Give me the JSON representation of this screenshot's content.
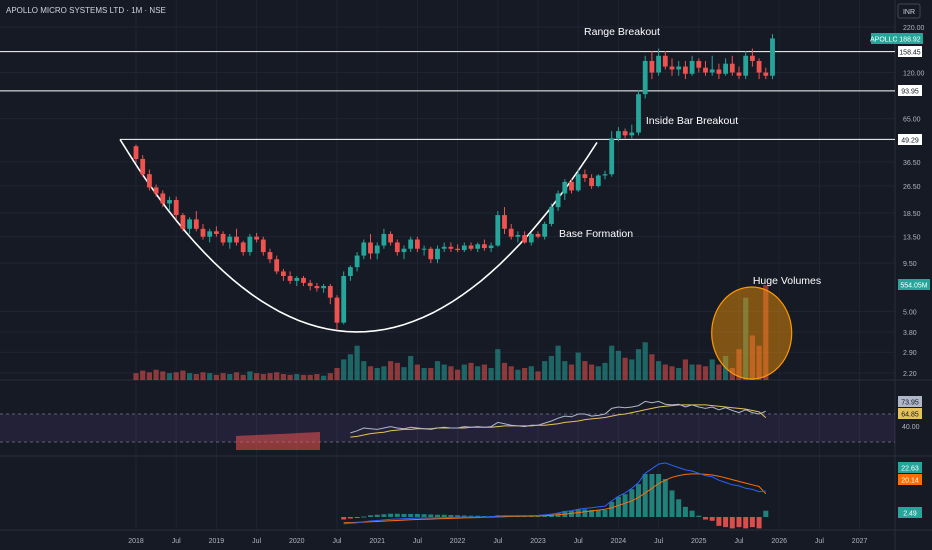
{
  "header": {
    "symbol_title": "APOLLO MICRO SYSTEMS LTD · 1M · NSE",
    "currency": "INR"
  },
  "colors": {
    "background": "#161a25",
    "up": "#26a69a",
    "down": "#ef5350",
    "text": "#d1d4dc",
    "rsi_line": "#b0b7c9",
    "rsi_ma": "#e5c15a",
    "macd_line": "#2962ff",
    "signal_line": "#ff6d00",
    "volume_highlight": "#ff9800"
  },
  "annotations": {
    "range_breakout": "Range Breakout",
    "inside_bar_breakout": "Inside Bar Breakout",
    "base_formation": "Base Formation",
    "huge_volumes": "Huge Volumes"
  },
  "price_badges": {
    "symbol": "APOLLO",
    "last_price": "188.92",
    "level_1": "158.45",
    "level_2": "93.95",
    "level_3": "49.29",
    "volume_last": "554.05M"
  },
  "rsi_badges": {
    "rsi": "73.95",
    "rsi_ma": "64.85",
    "level": "40.00"
  },
  "macd_badges": {
    "macd": "22.63",
    "signal": "20.14",
    "hist": "2.49"
  },
  "chart_data": {
    "type": "candlestick",
    "scale": "log",
    "price_ticks": [
      "220.00",
      "120.00",
      "65.00",
      "36.50",
      "26.50",
      "18.50",
      "13.50",
      "9.50",
      "5.00",
      "3.80",
      "2.90",
      "2.20"
    ],
    "price_tick_values": [
      220,
      120,
      65,
      36.5,
      26.5,
      18.5,
      13.5,
      9.5,
      5.0,
      3.8,
      2.9,
      2.2
    ],
    "x_ticks": [
      "2018",
      "Jul",
      "2019",
      "Jul",
      "2020",
      "Jul",
      "2021",
      "Jul",
      "2022",
      "Jul",
      "2023",
      "Jul",
      "2024",
      "Jul",
      "2025",
      "Jul",
      "2026",
      "Jul",
      "2027"
    ],
    "start": "2018-01",
    "horizontal_levels": [
      158.45,
      93.95,
      49.29
    ],
    "ohlc": [
      [
        45,
        46,
        36,
        38
      ],
      [
        38,
        40,
        30,
        31
      ],
      [
        31,
        33,
        25,
        26
      ],
      [
        26,
        27,
        23,
        24
      ],
      [
        24,
        25,
        20,
        21
      ],
      [
        21,
        23,
        19,
        22
      ],
      [
        22,
        23,
        17,
        18
      ],
      [
        18,
        18.5,
        14.5,
        15
      ],
      [
        15,
        17.5,
        14,
        17
      ],
      [
        17,
        19,
        14.5,
        15
      ],
      [
        15,
        16,
        13,
        13.5
      ],
      [
        13.5,
        15,
        12.5,
        14.5
      ],
      [
        14.5,
        15.5,
        13.5,
        14
      ],
      [
        14,
        14.5,
        12,
        12.5
      ],
      [
        12.5,
        14,
        11.5,
        13.5
      ],
      [
        13.5,
        15,
        12,
        12.5
      ],
      [
        12.5,
        12.8,
        10.5,
        11
      ],
      [
        11,
        14,
        10.5,
        13.5
      ],
      [
        13.5,
        14.2,
        12.5,
        13
      ],
      [
        13,
        13.5,
        10.5,
        11
      ],
      [
        11,
        11.5,
        9.5,
        10
      ],
      [
        10,
        10.5,
        8.2,
        8.5
      ],
      [
        8.5,
        8.8,
        7.5,
        8
      ],
      [
        8,
        8.5,
        7.2,
        7.5
      ],
      [
        7.5,
        8,
        7,
        7.8
      ],
      [
        7.8,
        8,
        7,
        7.3
      ],
      [
        7.3,
        7.6,
        6.6,
        7
      ],
      [
        7,
        7.3,
        6.5,
        6.8
      ],
      [
        6.8,
        7.2,
        6.4,
        7
      ],
      [
        7,
        7.2,
        5.5,
        6
      ],
      [
        6,
        6.2,
        3.9,
        4.3
      ],
      [
        4.3,
        8.5,
        4.2,
        8
      ],
      [
        8,
        9.2,
        7.5,
        9
      ],
      [
        9,
        11,
        8.5,
        10.5
      ],
      [
        10.5,
        13,
        10,
        12.5
      ],
      [
        12.5,
        14,
        10,
        10.8
      ],
      [
        10.8,
        12.5,
        10,
        12
      ],
      [
        12,
        15,
        11.5,
        14
      ],
      [
        14,
        14.5,
        12,
        12.5
      ],
      [
        12.5,
        13,
        10.5,
        11
      ],
      [
        11,
        12,
        10,
        11.5
      ],
      [
        11.5,
        13.5,
        11,
        13
      ],
      [
        13,
        13.5,
        11,
        11.5
      ],
      [
        11.5,
        12,
        10.5,
        11.5
      ],
      [
        11.5,
        11.8,
        9.5,
        10
      ],
      [
        10,
        12,
        9.5,
        11.5
      ],
      [
        11.5,
        12.5,
        11,
        11.8
      ],
      [
        11.8,
        12.5,
        11,
        11.5
      ],
      [
        11.5,
        12.2,
        11,
        11.3
      ],
      [
        11.3,
        12.5,
        11,
        12
      ],
      [
        12,
        12.5,
        11.2,
        11.5
      ],
      [
        11.5,
        12.5,
        11,
        12.2
      ],
      [
        12.2,
        13,
        11.2,
        11.6
      ],
      [
        11.6,
        12.5,
        11,
        12
      ],
      [
        12,
        19,
        11.8,
        18
      ],
      [
        18,
        20,
        14,
        15
      ],
      [
        15,
        16,
        13,
        13.5
      ],
      [
        13.5,
        14.5,
        12.5,
        13.8
      ],
      [
        13.8,
        14.5,
        12.3,
        12.5
      ],
      [
        12.5,
        14.2,
        12,
        14
      ],
      [
        14,
        14.5,
        13.2,
        13.5
      ],
      [
        13.5,
        16.5,
        13,
        16
      ],
      [
        16,
        21,
        15.5,
        20
      ],
      [
        20,
        25,
        19,
        24
      ],
      [
        24,
        29,
        22,
        28
      ],
      [
        28,
        29,
        24,
        25
      ],
      [
        25,
        33,
        24.5,
        31
      ],
      [
        31,
        33,
        28,
        29.5
      ],
      [
        29.5,
        31,
        25.5,
        26.5
      ],
      [
        26.5,
        31,
        26,
        30.5
      ],
      [
        30.5,
        32.5,
        29,
        31
      ],
      [
        31,
        55,
        30,
        50
      ],
      [
        50,
        58,
        48,
        55
      ],
      [
        55,
        57,
        50,
        52
      ],
      [
        52,
        60,
        50,
        54
      ],
      [
        54,
        95,
        52,
        90
      ],
      [
        90,
        150,
        85,
        140
      ],
      [
        140,
        160,
        110,
        120
      ],
      [
        120,
        165,
        115,
        150
      ],
      [
        150,
        160,
        125,
        130
      ],
      [
        130,
        145,
        115,
        125
      ],
      [
        125,
        140,
        115,
        130
      ],
      [
        130,
        140,
        110,
        118
      ],
      [
        118,
        150,
        115,
        140
      ],
      [
        140,
        145,
        120,
        128
      ],
      [
        128,
        140,
        115,
        120
      ],
      [
        120,
        150,
        115,
        125
      ],
      [
        125,
        135,
        110,
        118
      ],
      [
        118,
        145,
        115,
        135
      ],
      [
        135,
        150,
        115,
        120
      ],
      [
        120,
        130,
        110,
        115
      ],
      [
        115,
        160,
        110,
        150
      ],
      [
        150,
        165,
        130,
        140
      ],
      [
        140,
        145,
        110,
        120
      ],
      [
        120,
        128,
        110,
        115
      ],
      [
        115,
        200,
        110,
        188.92
      ]
    ],
    "volume": {
      "name": "Volume",
      "last": "554.05M",
      "values": [
        40,
        55,
        45,
        60,
        50,
        40,
        45,
        55,
        40,
        35,
        45,
        40,
        30,
        40,
        35,
        45,
        30,
        50,
        40,
        35,
        40,
        45,
        35,
        30,
        35,
        30,
        30,
        35,
        25,
        40,
        70,
        120,
        150,
        200,
        110,
        80,
        70,
        80,
        110,
        100,
        75,
        140,
        90,
        70,
        70,
        110,
        90,
        80,
        60,
        90,
        100,
        80,
        90,
        70,
        180,
        100,
        80,
        60,
        70,
        80,
        50,
        110,
        140,
        200,
        110,
        90,
        160,
        110,
        90,
        80,
        100,
        200,
        170,
        130,
        120,
        180,
        220,
        150,
        110,
        90,
        80,
        70,
        120,
        90,
        90,
        80,
        120,
        90,
        140,
        70,
        180,
        480,
        260,
        200,
        554
      ]
    },
    "rsi": {
      "values": [
        null,
        null,
        null,
        null,
        null,
        null,
        null,
        null,
        null,
        null,
        null,
        null,
        null,
        null,
        null,
        null,
        null,
        null,
        null,
        null,
        null,
        null,
        null,
        null,
        null,
        null,
        null,
        null,
        null,
        null,
        null,
        null,
        43,
        46,
        50,
        49,
        48,
        50,
        52,
        50,
        49,
        51,
        50,
        49,
        48,
        50,
        51,
        50,
        50,
        52,
        51,
        52,
        51,
        52,
        58,
        56,
        54,
        53,
        52,
        54,
        54,
        57,
        60,
        64,
        67,
        66,
        70,
        70,
        67,
        68,
        70,
        78,
        80,
        79,
        80,
        82,
        88,
        86,
        88,
        84,
        83,
        84,
        80,
        83,
        80,
        78,
        80,
        76,
        79,
        75,
        72,
        76,
        72,
        70,
        73.95
      ],
      "ma": [
        null,
        null,
        null,
        null,
        null,
        null,
        null,
        null,
        null,
        null,
        null,
        null,
        null,
        null,
        null,
        null,
        null,
        null,
        null,
        null,
        null,
        null,
        null,
        null,
        null,
        null,
        null,
        null,
        null,
        null,
        null,
        null,
        37,
        38,
        40,
        42,
        43,
        44,
        46,
        47,
        48,
        48,
        49,
        49,
        49,
        50,
        50,
        50,
        50,
        50,
        51,
        51,
        51,
        51,
        52,
        53,
        53,
        53,
        53,
        53,
        54,
        54,
        55,
        56,
        58,
        59,
        60,
        62,
        63,
        64,
        65,
        67,
        69,
        70,
        72,
        74,
        76,
        78,
        80,
        81,
        82,
        83,
        83,
        83,
        83,
        83,
        82,
        81,
        80,
        79,
        78,
        77,
        75,
        73,
        64.85
      ],
      "level": 40
    },
    "macd": {
      "macd": [
        null,
        null,
        null,
        null,
        null,
        null,
        null,
        null,
        null,
        null,
        null,
        null,
        null,
        null,
        null,
        null,
        null,
        null,
        null,
        null,
        null,
        null,
        null,
        null,
        null,
        null,
        null,
        null,
        null,
        null,
        null,
        -6,
        -5.5,
        -5,
        -4.2,
        -3.5,
        -3,
        -2.5,
        -2,
        -1.7,
        -1.5,
        -1.2,
        -1,
        -0.9,
        -0.8,
        -0.7,
        -0.5,
        -0.4,
        -0.3,
        -0.2,
        -0.1,
        0,
        0.1,
        0.3,
        0.8,
        1,
        1.1,
        1.2,
        1.2,
        1.3,
        1.4,
        1.8,
        2.5,
        3.5,
        4.8,
        5.5,
        6.8,
        7.5,
        8,
        8.8,
        9.5,
        14,
        18,
        21,
        25,
        30,
        38,
        42,
        46,
        47,
        45,
        43,
        41,
        40,
        38,
        36,
        35,
        32,
        30,
        28,
        27,
        25,
        24,
        22,
        22.63
      ],
      "signal": [
        null,
        null,
        null,
        null,
        null,
        null,
        null,
        null,
        null,
        null,
        null,
        null,
        null,
        null,
        null,
        null,
        null,
        null,
        null,
        null,
        null,
        null,
        null,
        null,
        null,
        null,
        null,
        null,
        null,
        null,
        null,
        -5,
        -4.9,
        -4.7,
        -4.4,
        -4.2,
        -3.9,
        -3.6,
        -3.3,
        -3,
        -2.7,
        -2.4,
        -2.2,
        -2,
        -1.8,
        -1.6,
        -1.4,
        -1.2,
        -1,
        -0.8,
        -0.6,
        -0.5,
        -0.3,
        -0.1,
        0.1,
        0.3,
        0.5,
        0.7,
        0.8,
        0.9,
        1,
        1.2,
        1.5,
        1.9,
        2.5,
        3.1,
        3.8,
        4.5,
        5.2,
        6,
        6.7,
        8,
        10,
        12,
        14,
        17,
        21,
        25,
        29,
        32,
        34.5,
        36,
        37,
        37.5,
        37.5,
        37,
        36.5,
        35.5,
        34,
        32.5,
        31,
        29.5,
        28,
        26.5,
        20.14
      ],
      "hist_last": "2.49"
    }
  }
}
